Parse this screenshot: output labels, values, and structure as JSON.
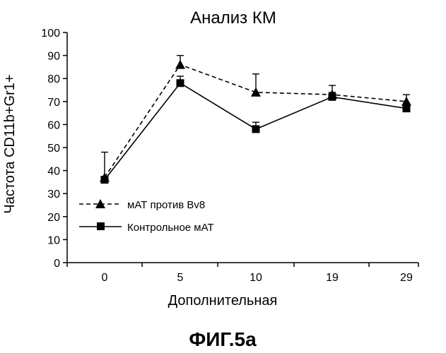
{
  "chart_data": {
    "type": "line",
    "title": "Анализ КМ",
    "xlabel": "Дополнительная",
    "ylabel": "Частота CD11b+Gr1+",
    "categories": [
      "0",
      "5",
      "10",
      "19",
      "29"
    ],
    "ylim": [
      0,
      100
    ],
    "yticks": [
      0,
      10,
      20,
      30,
      40,
      50,
      60,
      70,
      80,
      90,
      100
    ],
    "grid": false,
    "legend_position": "bottom-left",
    "series": [
      {
        "name": "мАТ против Bv8",
        "values": [
          37,
          86,
          74,
          73,
          70
        ],
        "errors": [
          11,
          4,
          8,
          4,
          3
        ],
        "marker": "triangle",
        "line_style": "dashed",
        "color": "#000000"
      },
      {
        "name": "Контрольное мАТ",
        "values": [
          36,
          78,
          58,
          72,
          67
        ],
        "errors": [
          0,
          3,
          3,
          2,
          2
        ],
        "marker": "square",
        "line_style": "solid",
        "color": "#000000"
      }
    ]
  },
  "figure_label": "ФИГ.5а"
}
